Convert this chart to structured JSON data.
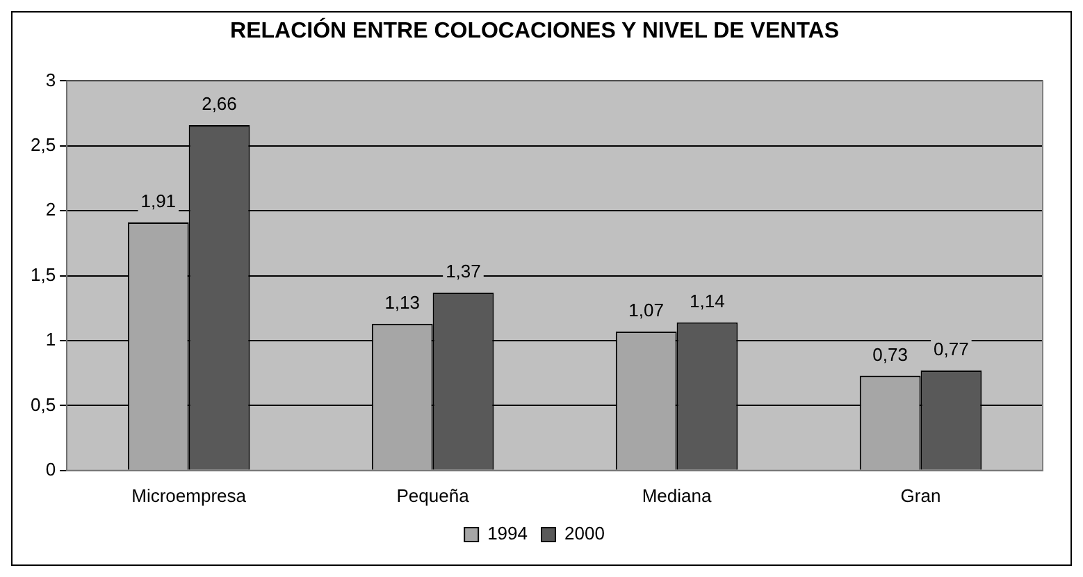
{
  "chart_data": {
    "type": "bar",
    "title": "RELACIÓN ENTRE COLOCACIONES Y NIVEL DE VENTAS",
    "categories": [
      "Microempresa",
      "Pequeña",
      "Mediana",
      "Gran"
    ],
    "series": [
      {
        "name": "1994",
        "color": "#a6a6a6",
        "values": [
          1.91,
          1.13,
          1.07,
          0.73
        ],
        "value_labels": [
          "1,91",
          "1,13",
          "1,07",
          "0,73"
        ]
      },
      {
        "name": "2000",
        "color": "#595959",
        "values": [
          2.66,
          1.37,
          1.14,
          0.77
        ],
        "value_labels": [
          "2,66",
          "1,37",
          "1,14",
          "0,77"
        ]
      }
    ],
    "ylim": [
      0,
      3
    ],
    "yticks": [
      0,
      {
        "value": 0.5,
        "label": "0,5"
      },
      1,
      {
        "value": 1.5,
        "label": "1,5"
      },
      2,
      {
        "value": 2.5,
        "label": "2,5"
      },
      3
    ],
    "grid": "y",
    "legend": "bottom"
  }
}
